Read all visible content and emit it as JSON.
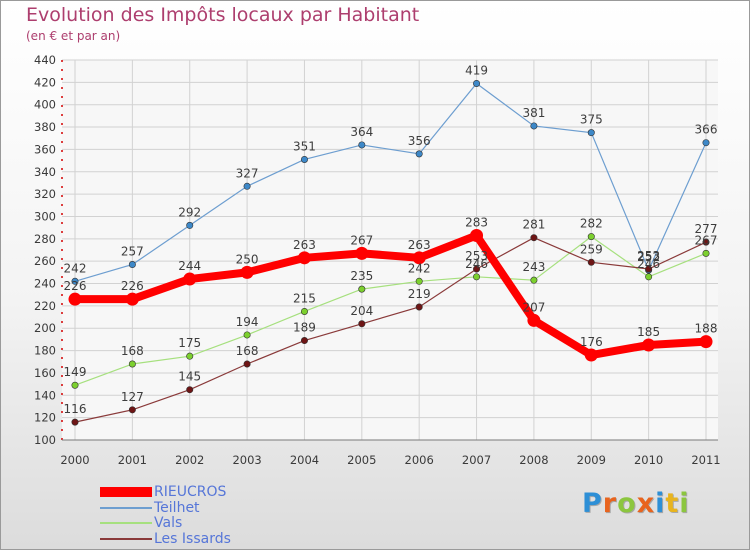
{
  "title": "Evolution des Impôts locaux par Habitant",
  "subtitle": "(en € et par an)",
  "logo": {
    "text": "Proxiti",
    "letter_colors": [
      "#2d8fd6",
      "#e8641e",
      "#8cc63f",
      "#e8641e",
      "#2d8fd6",
      "#e8b41e",
      "#8cc63f"
    ]
  },
  "chart_data": {
    "type": "line",
    "x": [
      "2000",
      "2001",
      "2002",
      "2003",
      "2004",
      "2005",
      "2006",
      "2007",
      "2008",
      "2009",
      "2010",
      "2011"
    ],
    "ylim": [
      100,
      440
    ],
    "yticks": [
      100,
      120,
      140,
      160,
      180,
      200,
      220,
      240,
      260,
      280,
      300,
      320,
      340,
      360,
      380,
      400,
      420,
      440
    ],
    "grid": true,
    "legend_position": "bottom-left",
    "series": [
      {
        "name": "RIEUCROS",
        "color": "#ff0000",
        "emphasis": true,
        "values": [
          226,
          226,
          244,
          250,
          263,
          267,
          263,
          283,
          207,
          176,
          185,
          188
        ],
        "labels": [
          "226",
          "226",
          "244",
          "250",
          "263",
          "267",
          "263",
          "283",
          "207",
          "176",
          "185",
          "188"
        ]
      },
      {
        "name": "Teilhet",
        "color": "#6d9ed0",
        "marker": "#3d88c8",
        "values": [
          242,
          257,
          292,
          327,
          351,
          364,
          356,
          419,
          381,
          375,
          252,
          366
        ],
        "labels": [
          "242",
          "257",
          "292",
          "327",
          "351",
          "364",
          "356",
          "419",
          "381",
          "375",
          "252",
          "366"
        ]
      },
      {
        "name": "Vals",
        "color": "#a6e07e",
        "marker": "#7cd02e",
        "values": [
          149,
          168,
          175,
          194,
          215,
          235,
          242,
          246,
          243,
          282,
          246,
          267
        ],
        "labels": [
          "149",
          "168",
          "175",
          "194",
          "215",
          "235",
          "242",
          "246",
          "243",
          "282",
          "246",
          "267"
        ]
      },
      {
        "name": "Les Issards",
        "color": "#8a3a3a",
        "marker": "#6e1515",
        "values": [
          116,
          127,
          145,
          168,
          189,
          204,
          219,
          253,
          281,
          259,
          253,
          277
        ],
        "labels": [
          "116",
          "127",
          "145",
          "168",
          "189",
          "204",
          "219",
          "253",
          "281",
          "259",
          "253",
          "277"
        ]
      }
    ]
  }
}
